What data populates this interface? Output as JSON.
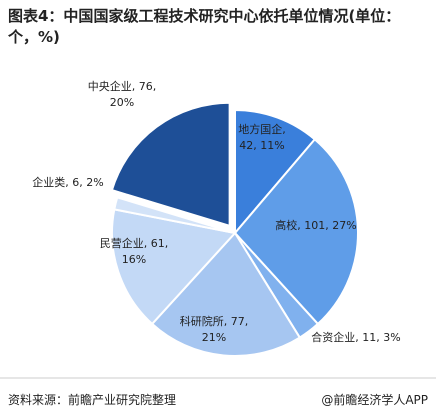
{
  "chart_data": {
    "type": "pie",
    "title": "图表4：中国国家级工程技术研究中心依托单位情况(单位：个，%)",
    "values": [
      42,
      101,
      11,
      77,
      61,
      6,
      76
    ],
    "value_labels": [
      [
        "地方国企,",
        "42, 11%"
      ],
      [
        "高校, 101, 27%"
      ],
      [
        "合资企业, 11, 3%"
      ],
      [
        "科研院所, 77,",
        "21%"
      ],
      [
        "民营企业, 61,",
        "16%"
      ],
      [
        "企业类, 6, 2%"
      ],
      [
        "中央企业, 76,",
        "20%"
      ]
    ],
    "colors": [
      "#3a7fdb",
      "#5f9de8",
      "#80b1ee",
      "#a6c6f1",
      "#c3d9f6",
      "#d3e3f8",
      "#1e4f97"
    ],
    "exploded": [
      false,
      false,
      false,
      false,
      false,
      false,
      true
    ],
    "source": "资料来源：前瞻产业研究院整理",
    "credit": "@前瞻经济学人APP"
  }
}
